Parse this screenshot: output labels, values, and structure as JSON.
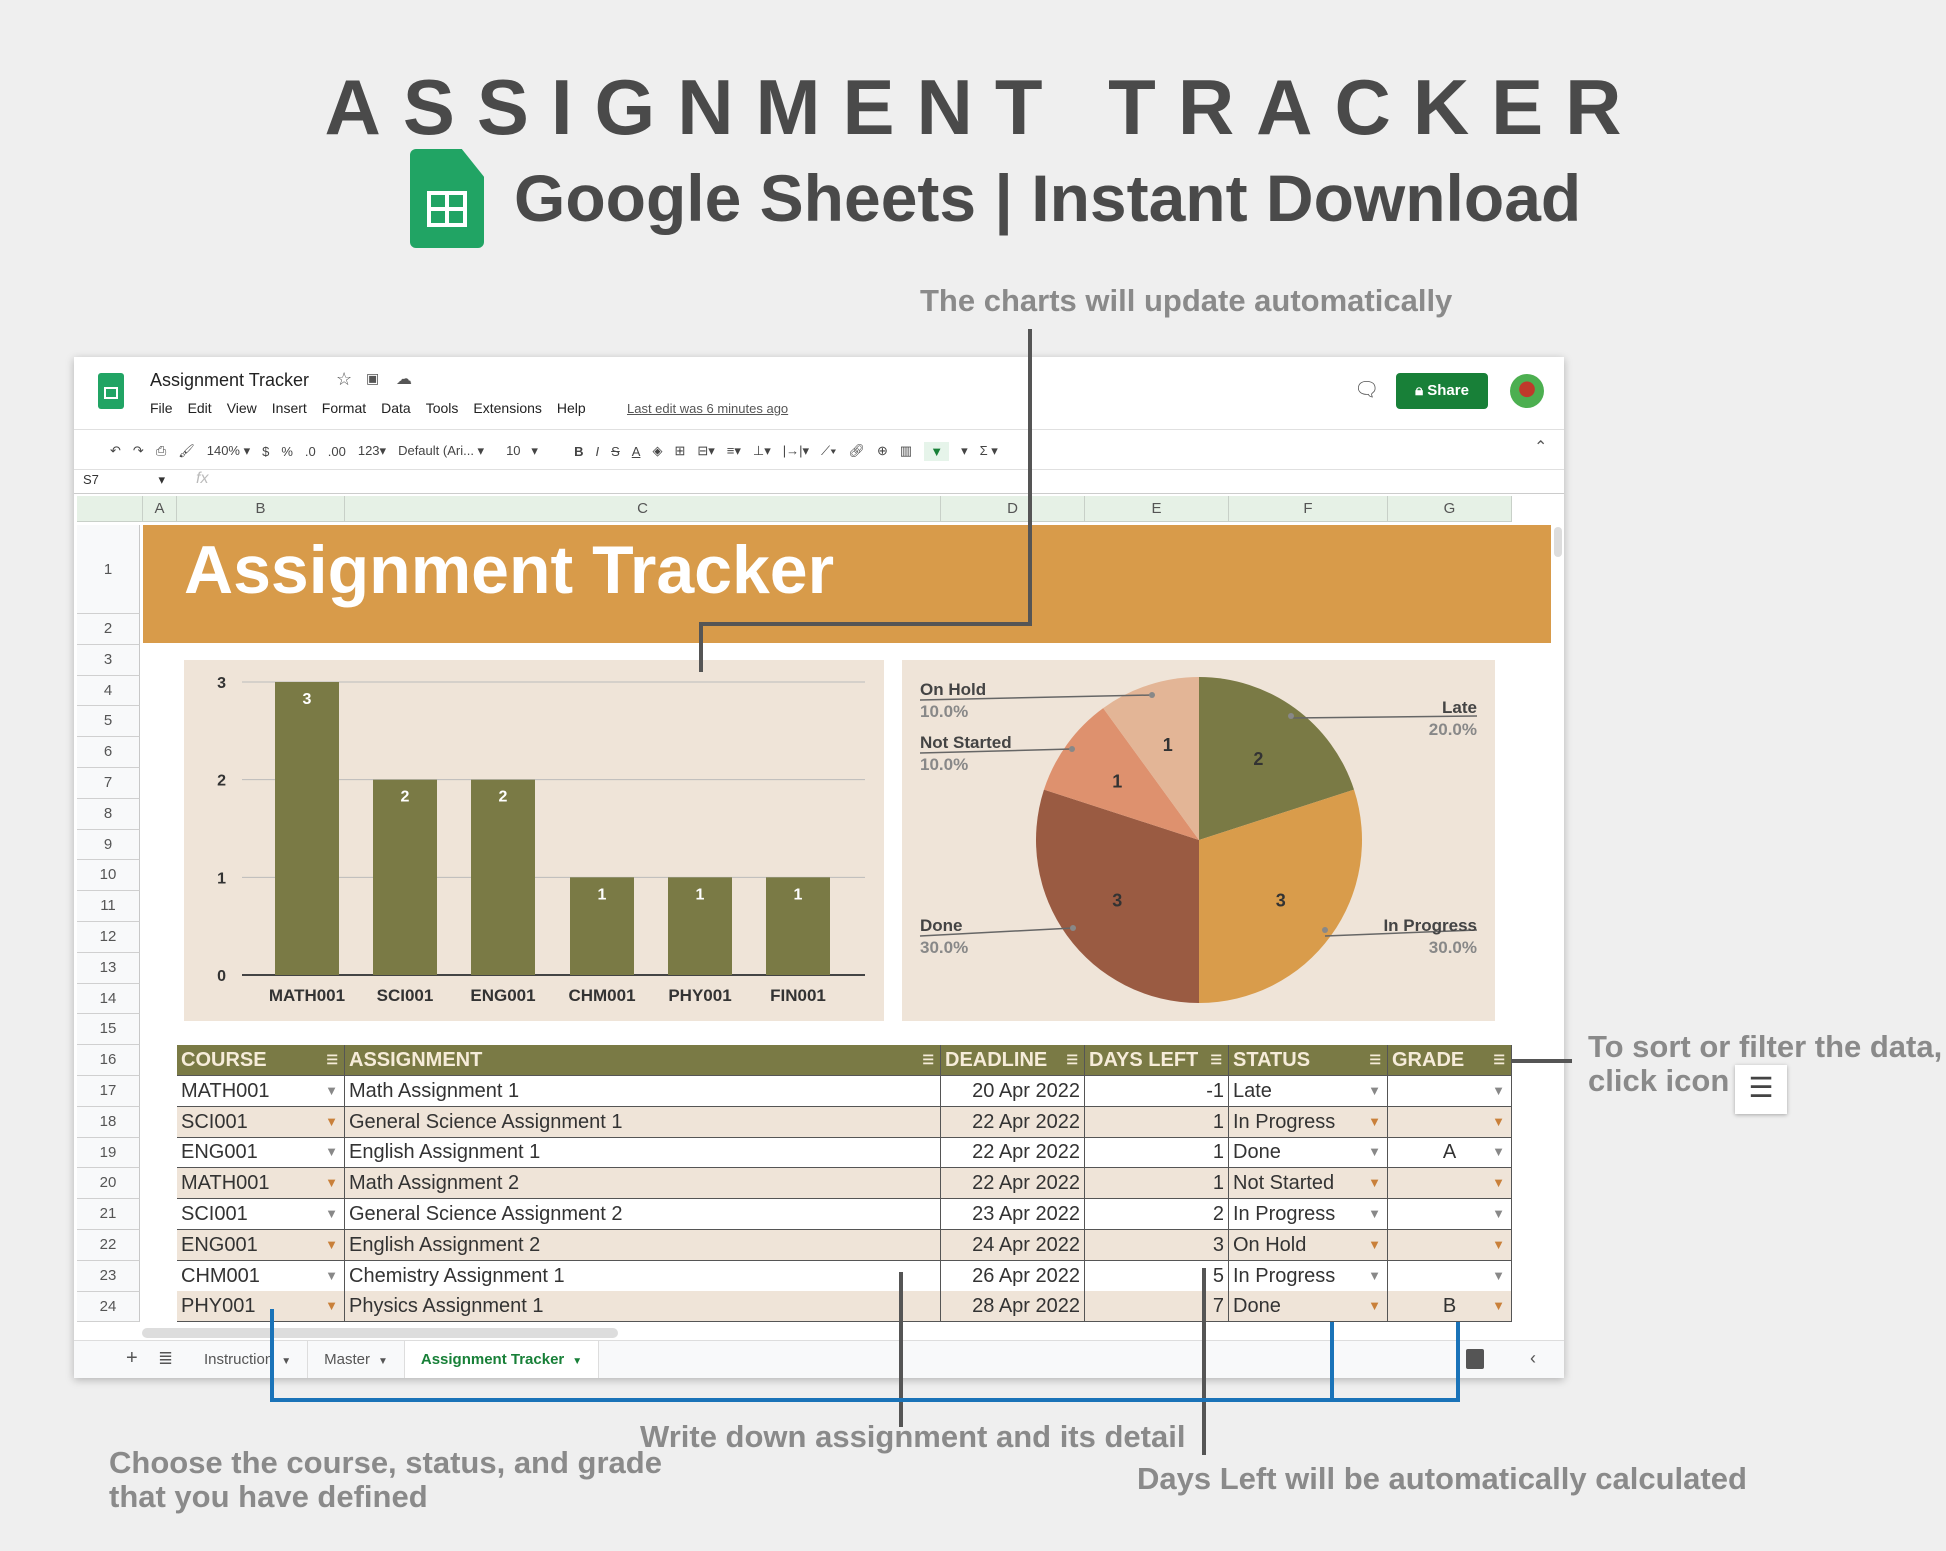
{
  "promo": {
    "title": "ASSIGNMENT TRACKER",
    "subtitle": "Google Sheets | Instant Download",
    "notes": {
      "charts": "The charts will update automatically",
      "filter_1": "To sort or filter the data,",
      "filter_2": "click icon",
      "write": "Write down assignment and its detail",
      "choose_1": "Choose the course, status, and grade",
      "choose_2": "that you have defined",
      "days": "Days Left will be automatically calculated"
    }
  },
  "app": {
    "doc_title": "Assignment Tracker",
    "menu": [
      "File",
      "Edit",
      "View",
      "Insert",
      "Format",
      "Data",
      "Tools",
      "Extensions",
      "Help"
    ],
    "last_edit": "Last edit was 6 minutes ago",
    "share": "Share",
    "toolbar": {
      "zoom": "140%",
      "currency": "$",
      "percent": "%",
      "dec_less": ".0",
      "dec_more": ".00",
      "format": "123",
      "font": "Default (Ari...",
      "size": "10",
      "bold": "B",
      "italic": "I",
      "strike": "S",
      "text_color": "A",
      "sum": "Σ"
    },
    "name_box": "S7",
    "fx": "fx",
    "columns": [
      "A",
      "B",
      "C",
      "D",
      "E",
      "F",
      "G"
    ],
    "sheet_tabs": [
      "Instruction",
      "Master",
      "Assignment Tracker"
    ],
    "active_tab": "Assignment Tracker",
    "accent": "#188038"
  },
  "sheet": {
    "banner": "Assignment Tracker",
    "banner_color": "#D89B4A",
    "headers": [
      "COURSE",
      "ASSIGNMENT",
      "DEADLINE",
      "DAYS LEFT",
      "STATUS",
      "GRADE"
    ],
    "rows": [
      [
        "MATH001",
        "Math Assignment 1",
        "20 Apr 2022",
        "-1",
        "Late",
        ""
      ],
      [
        "SCI001",
        "General Science Assignment 1",
        "22 Apr 2022",
        "1",
        "In Progress",
        ""
      ],
      [
        "ENG001",
        "English Assignment 1",
        "22 Apr 2022",
        "1",
        "Done",
        "A"
      ],
      [
        "MATH001",
        "Math Assignment 2",
        "22 Apr 2022",
        "1",
        "Not Started",
        ""
      ],
      [
        "SCI001",
        "General Science Assignment 2",
        "23 Apr 2022",
        "2",
        "In Progress",
        ""
      ],
      [
        "ENG001",
        "English Assignment 2",
        "24 Apr 2022",
        "3",
        "On Hold",
        ""
      ],
      [
        "CHM001",
        "Chemistry Assignment 1",
        "26 Apr 2022",
        "5",
        "In Progress",
        ""
      ],
      [
        "PHY001",
        "Physics Assignment 1",
        "28 Apr 2022",
        "7",
        "Done",
        "B"
      ]
    ]
  },
  "chart_data": [
    {
      "type": "bar",
      "categories": [
        "MATH001",
        "SCI001",
        "ENG001",
        "CHM001",
        "PHY001",
        "FIN001"
      ],
      "values": [
        3,
        2,
        2,
        1,
        1,
        1
      ],
      "ylim": [
        0,
        3
      ],
      "yticks": [
        "0",
        "1",
        "2",
        "3"
      ],
      "grid": true,
      "color": "#7A7A45"
    },
    {
      "type": "pie",
      "slices": [
        {
          "label": "Late",
          "value": 2,
          "pct": "20.0%",
          "color": "#7A7A45"
        },
        {
          "label": "In Progress",
          "value": 3,
          "pct": "30.0%",
          "color": "#D99C4B"
        },
        {
          "label": "Done",
          "value": 3,
          "pct": "30.0%",
          "color": "#9A5B42"
        },
        {
          "label": "Not Started",
          "value": 1,
          "pct": "10.0%",
          "color": "#DE916E"
        },
        {
          "label": "On Hold",
          "value": 1,
          "pct": "10.0%",
          "color": "#E3B596"
        }
      ]
    }
  ]
}
